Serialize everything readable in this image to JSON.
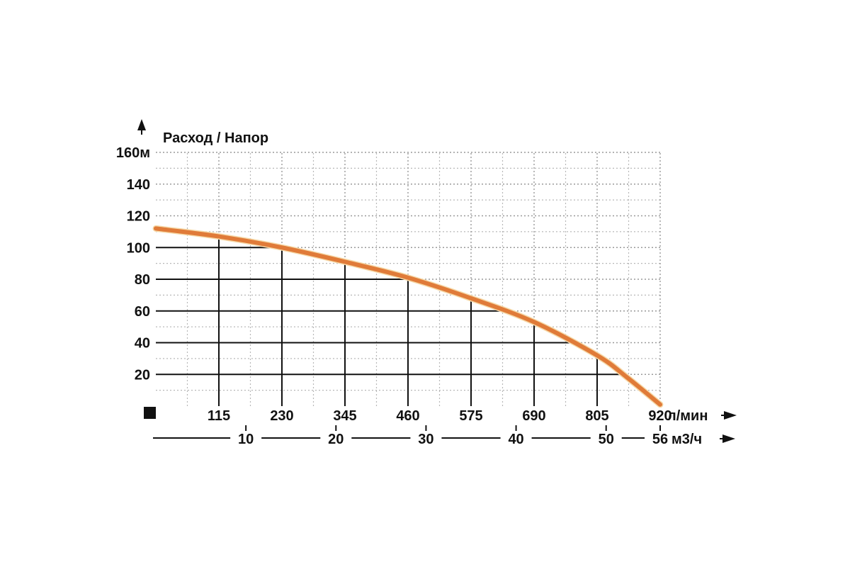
{
  "chart_data": {
    "type": "line",
    "title": "Расход / Напор",
    "y_unit": "м",
    "x_unit": "л/мин",
    "x2_unit": "м3/ч",
    "ylim": [
      0,
      160
    ],
    "xlim": [
      0,
      920
    ],
    "y_ticks": [
      20,
      40,
      60,
      80,
      100,
      120,
      140,
      160
    ],
    "y_tick_labels": [
      "20",
      "40",
      "60",
      "80",
      "100",
      "120",
      "140",
      "160м"
    ],
    "x_ticks": [
      115,
      230,
      345,
      460,
      575,
      690,
      805,
      920
    ],
    "x_tick_labels": [
      "115",
      "230",
      "345",
      "460",
      "575",
      "690",
      "805",
      "920"
    ],
    "x2_ticks": [
      10,
      20,
      30,
      40,
      50,
      56
    ],
    "x2_tick_labels": [
      "10",
      "20",
      "30",
      "40",
      "50",
      "56"
    ],
    "grid": true,
    "series": [
      {
        "color": "#E07B39",
        "x": [
          0,
          115,
          230,
          345,
          460,
          575,
          690,
          805,
          860,
          920
        ],
        "y": [
          112,
          107,
          100,
          91,
          81,
          68,
          53,
          32,
          18,
          1
        ]
      }
    ]
  }
}
